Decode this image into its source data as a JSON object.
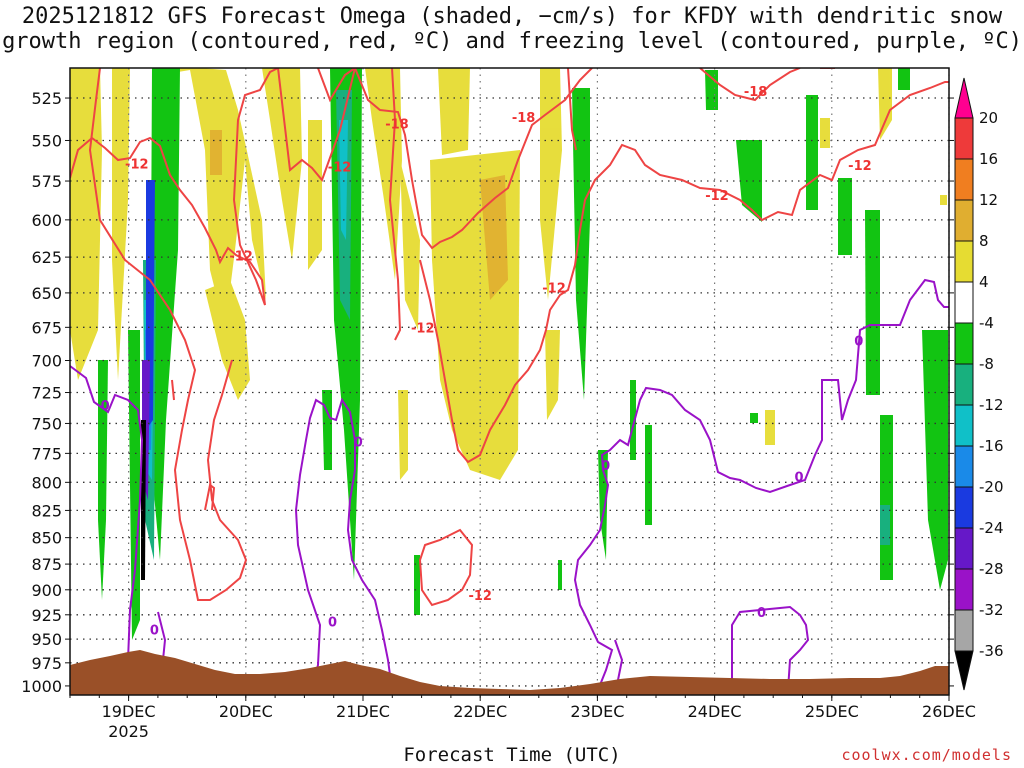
{
  "chart_data": {
    "type": "heatmap",
    "title_line1": "2025121812 GFS Forecast Omega (shaded, −cm/s) for KFDY with dendritic snow",
    "title_line2": "growth region (contoured, red, ºC) and freezing level (contoured, purple, ºC)",
    "xlabel": "Forecast Time (UTC)",
    "x_ticks": [
      {
        "t": 0.5,
        "label": "19DEC",
        "sub": "2025"
      },
      {
        "t": 1.5,
        "label": "20DEC"
      },
      {
        "t": 2.5,
        "label": "21DEC"
      },
      {
        "t": 3.5,
        "label": "22DEC"
      },
      {
        "t": 4.5,
        "label": "23DEC"
      },
      {
        "t": 5.5,
        "label": "24DEC"
      },
      {
        "t": 6.5,
        "label": "25DEC"
      },
      {
        "t": 7.5,
        "label": "26DEC"
      }
    ],
    "x_range_days": [
      0,
      7.5
    ],
    "y_ticks": [
      525,
      550,
      575,
      600,
      625,
      650,
      675,
      700,
      725,
      750,
      775,
      800,
      825,
      850,
      875,
      900,
      925,
      950,
      975,
      1000
    ],
    "y_range_hpa": [
      508,
      1010
    ],
    "colorbar": {
      "labels": [
        20,
        16,
        12,
        8,
        4,
        -4,
        -8,
        -12,
        -16,
        -20,
        -24,
        -28,
        -32,
        -36
      ],
      "colors": [
        "#ff0090",
        "#ee3a3a",
        "#f07e20",
        "#e0ae30",
        "#e6dc32",
        "#ffffff",
        "#12c412",
        "#18b07e",
        "#10c0c8",
        "#1a8ae8",
        "#1a3ae0",
        "#6618c8",
        "#9a12c8",
        "#a6a6a6",
        "#000000"
      ]
    },
    "contours": {
      "dendritic_red": [
        {
          "label": "-12",
          "t": 0.57,
          "p": 564
        },
        {
          "label": "-12",
          "t": 1.46,
          "p": 624
        },
        {
          "label": "-18",
          "t": 2.79,
          "p": 540
        },
        {
          "label": "-12",
          "t": 2.3,
          "p": 566
        },
        {
          "label": "-18",
          "t": 3.87,
          "p": 536
        },
        {
          "label": "-12",
          "t": 3.01,
          "p": 675
        },
        {
          "label": "-12",
          "t": 4.13,
          "p": 646
        },
        {
          "label": "-12",
          "t": 3.5,
          "p": 905
        },
        {
          "label": "-18",
          "t": 5.85,
          "p": 521
        },
        {
          "label": "-12",
          "t": 5.52,
          "p": 584
        },
        {
          "label": "-12",
          "t": 6.74,
          "p": 565
        }
      ],
      "freezing_purple": [
        {
          "label": "0",
          "t": 0.3,
          "p": 735
        },
        {
          "label": "0",
          "t": 0.72,
          "p": 940
        },
        {
          "label": "0",
          "t": 2.24,
          "p": 932
        },
        {
          "label": "0",
          "t": 2.46,
          "p": 765
        },
        {
          "label": "0",
          "t": 4.57,
          "p": 785
        },
        {
          "label": "0",
          "t": 5.9,
          "p": 922
        },
        {
          "label": "0",
          "t": 6.22,
          "p": 795
        },
        {
          "label": "0",
          "t": 6.73,
          "p": 685
        }
      ]
    }
  },
  "credit": "coolwx.com/models"
}
